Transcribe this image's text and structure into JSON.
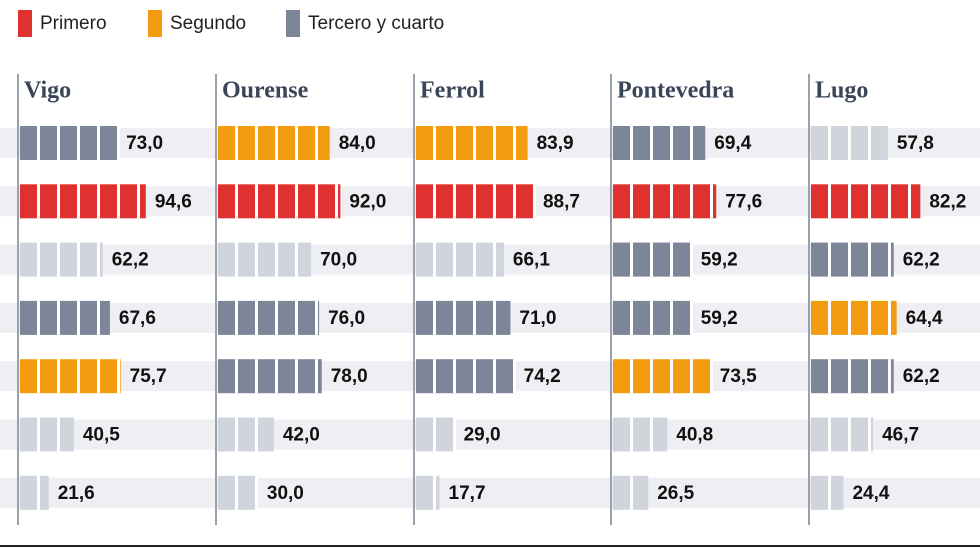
{
  "chart_data": {
    "type": "bar",
    "xlim": [
      0,
      100
    ],
    "legend": [
      {
        "name": "Primero",
        "color": "#e03131"
      },
      {
        "name": "Segundo",
        "color": "#f39c0f"
      },
      {
        "name": "Tercero y cuarto",
        "color": "#7d8599"
      }
    ],
    "panels": [
      {
        "title": "Vigo",
        "values": [
          73.0,
          94.6,
          62.2,
          67.6,
          75.7,
          40.5,
          21.6
        ],
        "value_labels": [
          "73,0",
          "94,6",
          "62,2",
          "67,6",
          "75,7",
          "40,5",
          "21,6"
        ],
        "colors": [
          "#7d8599",
          "#e03131",
          "#d0d4dc",
          "#7d8599",
          "#f39c0f",
          "#d0d4dc",
          "#d0d4dc"
        ]
      },
      {
        "title": "Ourense",
        "values": [
          84.0,
          92.0,
          70.0,
          76.0,
          78.0,
          42.0,
          30.0
        ],
        "value_labels": [
          "84,0",
          "92,0",
          "70,0",
          "76,0",
          "78,0",
          "42,0",
          "30,0"
        ],
        "colors": [
          "#f39c0f",
          "#e03131",
          "#d0d4dc",
          "#7d8599",
          "#7d8599",
          "#d0d4dc",
          "#d0d4dc"
        ]
      },
      {
        "title": "Ferrol",
        "values": [
          83.9,
          88.7,
          66.1,
          71.0,
          74.2,
          29.0,
          17.7
        ],
        "value_labels": [
          "83,9",
          "88,7",
          "66,1",
          "71,0",
          "74,2",
          "29,0",
          "17,7"
        ],
        "colors": [
          "#f39c0f",
          "#e03131",
          "#d0d4dc",
          "#7d8599",
          "#7d8599",
          "#d0d4dc",
          "#d0d4dc"
        ]
      },
      {
        "title": "Pontevedra",
        "values": [
          69.4,
          77.6,
          59.2,
          59.2,
          73.5,
          40.8,
          26.5
        ],
        "value_labels": [
          "69,4",
          "77,6",
          "59,2",
          "59,2",
          "73,5",
          "40,8",
          "26,5"
        ],
        "colors": [
          "#7d8599",
          "#e03131",
          "#7d8599",
          "#7d8599",
          "#f39c0f",
          "#d0d4dc",
          "#d0d4dc"
        ]
      },
      {
        "title": "Lugo",
        "values": [
          57.8,
          82.2,
          62.2,
          64.4,
          62.2,
          46.7,
          24.4
        ],
        "value_labels": [
          "57,8",
          "82,2",
          "62,2",
          "64,4",
          "62,2",
          "46,7",
          "24,4"
        ],
        "colors": [
          "#d0d4dc",
          "#e03131",
          "#7d8599",
          "#f39c0f",
          "#7d8599",
          "#d0d4dc",
          "#d0d4dc"
        ]
      }
    ]
  }
}
